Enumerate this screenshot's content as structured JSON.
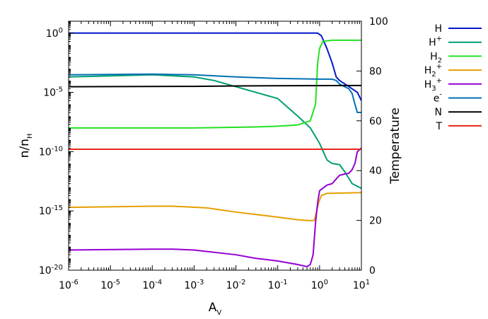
{
  "chart_data": {
    "type": "line",
    "x_axis": {
      "label_base": "A",
      "label_sub": "V",
      "scale": "log",
      "range": [
        1e-06,
        10
      ],
      "ticks": [
        {
          "value": 1e-06,
          "base": "10",
          "exp": "-6"
        },
        {
          "value": 1e-05,
          "base": "10",
          "exp": "-5"
        },
        {
          "value": 0.0001,
          "base": "10",
          "exp": "-4"
        },
        {
          "value": 0.001,
          "base": "10",
          "exp": "-3"
        },
        {
          "value": 0.01,
          "base": "10",
          "exp": "-2"
        },
        {
          "value": 0.1,
          "base": "10",
          "exp": "-1"
        },
        {
          "value": 1,
          "base": "10",
          "exp": "0"
        },
        {
          "value": 10,
          "base": "10",
          "exp": "1"
        }
      ]
    },
    "y_axis_left": {
      "label_base": "n/n",
      "label_sub": "H",
      "scale": "log",
      "range": [
        1e-20,
        10
      ],
      "ticks": [
        {
          "value": 1,
          "base": "10",
          "exp": "0"
        },
        {
          "value": 1e-05,
          "base": "10",
          "exp": "-5"
        },
        {
          "value": 1e-10,
          "base": "10",
          "exp": "-10"
        },
        {
          "value": 1e-15,
          "base": "10",
          "exp": "-15"
        },
        {
          "value": 1e-20,
          "base": "10",
          "exp": "-20"
        }
      ]
    },
    "y_axis_right": {
      "label": "Temperature",
      "scale": "linear",
      "range": [
        0,
        100
      ],
      "ticks": [
        0,
        20,
        40,
        60,
        80,
        100
      ]
    },
    "grid": false,
    "legend_position": "outside-right",
    "series": [
      {
        "name_base": "H",
        "name_sup": "",
        "name_sub": "",
        "color": "#0018c8",
        "axis": "left",
        "points": [
          [
            1e-06,
            1.0
          ],
          [
            0.1,
            1.0
          ],
          [
            0.9,
            1.0
          ],
          [
            1.1,
            0.6
          ],
          [
            1.5,
            0.05
          ],
          [
            2.0,
            0.003
          ],
          [
            2.5,
            0.0002
          ],
          [
            3.0,
            0.0001
          ],
          [
            3.5,
            7e-05
          ],
          [
            4.5,
            4e-05
          ],
          [
            6.0,
            2e-05
          ],
          [
            8.0,
            1e-05
          ],
          [
            10.0,
            2e-06
          ]
        ]
      },
      {
        "name_base": "H",
        "name_sup": "+",
        "name_sub": "",
        "color": "#009e73",
        "axis": "left",
        "points": [
          [
            1e-06,
            0.0002
          ],
          [
            0.0001,
            0.0003
          ],
          [
            0.001,
            0.0002
          ],
          [
            0.003,
            0.0001
          ],
          [
            0.01,
            3e-05
          ],
          [
            0.03,
            1e-05
          ],
          [
            0.1,
            3e-06
          ],
          [
            0.3,
            1e-07
          ],
          [
            0.6,
            1e-08
          ],
          [
            1.0,
            5e-10
          ],
          [
            1.5,
            2e-11
          ],
          [
            2.0,
            1e-11
          ],
          [
            3.0,
            8e-12
          ],
          [
            4.0,
            2e-12
          ],
          [
            6.0,
            2e-13
          ],
          [
            10.0,
            8e-14
          ]
        ]
      },
      {
        "name_base": "H",
        "name_sup": "",
        "name_sub": "2",
        "color": "#22e022",
        "axis": "left",
        "points": [
          [
            1e-06,
            1e-08
          ],
          [
            0.001,
            1e-08
          ],
          [
            0.03,
            1.2e-08
          ],
          [
            0.1,
            1.4e-08
          ],
          [
            0.3,
            1.8e-08
          ],
          [
            0.6,
            4e-08
          ],
          [
            0.8,
            1e-06
          ],
          [
            0.9,
            0.003
          ],
          [
            1.0,
            0.05
          ],
          [
            1.2,
            0.2
          ],
          [
            2.0,
            0.25
          ],
          [
            10.0,
            0.25
          ]
        ]
      },
      {
        "name_base": "H",
        "name_sup": "+",
        "name_sub": "2",
        "color": "#e69f00",
        "axis": "left",
        "points": [
          [
            1e-06,
            2e-15
          ],
          [
            0.0001,
            2.5e-15
          ],
          [
            0.0003,
            2.5e-15
          ],
          [
            0.002,
            1.8e-15
          ],
          [
            0.01,
            8e-16
          ],
          [
            0.03,
            5e-16
          ],
          [
            0.1,
            3e-16
          ],
          [
            0.3,
            1.8e-16
          ],
          [
            0.6,
            1.5e-16
          ],
          [
            0.75,
            1.6e-16
          ],
          [
            0.85,
            1e-15
          ],
          [
            0.95,
            5e-15
          ],
          [
            1.1,
            2e-14
          ],
          [
            1.5,
            3e-14
          ],
          [
            10.0,
            3.5e-14
          ]
        ]
      },
      {
        "name_base": "H",
        "name_sup": "+",
        "name_sub": "3",
        "color": "#9400d3",
        "axis": "left",
        "points": [
          [
            1e-06,
            5e-19
          ],
          [
            0.0001,
            6e-19
          ],
          [
            0.0003,
            6e-19
          ],
          [
            0.001,
            5e-19
          ],
          [
            0.01,
            2e-19
          ],
          [
            0.03,
            1e-19
          ],
          [
            0.1,
            6e-20
          ],
          [
            0.3,
            3e-20
          ],
          [
            0.5,
            2e-20
          ],
          [
            0.6,
            3e-20
          ],
          [
            0.7,
            2e-19
          ],
          [
            0.8,
            1e-16
          ],
          [
            0.9,
            5e-15
          ],
          [
            1.0,
            5e-14
          ],
          [
            1.5,
            1.5e-13
          ],
          [
            2.0,
            2e-13
          ],
          [
            2.5,
            5e-13
          ],
          [
            3.0,
            1e-12
          ],
          [
            4.0,
            1.3e-12
          ],
          [
            5.0,
            1.5e-12
          ],
          [
            6.0,
            3e-12
          ],
          [
            7.0,
            1e-11
          ],
          [
            8.0,
            1e-10
          ],
          [
            10.0,
            2e-10
          ]
        ]
      },
      {
        "name_base": "e",
        "name_sup": "-",
        "name_sub": "",
        "color": "#0072b2",
        "axis": "left",
        "points": [
          [
            1e-06,
            0.0003
          ],
          [
            0.0001,
            0.00035
          ],
          [
            0.001,
            0.0003
          ],
          [
            0.01,
            0.0002
          ],
          [
            0.1,
            0.00015
          ],
          [
            1.0,
            0.00013
          ],
          [
            2.0,
            0.00013
          ],
          [
            2.5,
            0.0001
          ],
          [
            3.0,
            5e-05
          ],
          [
            4.0,
            3e-05
          ],
          [
            5.0,
            2e-05
          ],
          [
            6.0,
            8e-06
          ],
          [
            7.0,
            1e-06
          ],
          [
            8.0,
            2e-07
          ],
          [
            10.0,
            2e-07
          ]
        ]
      },
      {
        "name_base": "N",
        "name_sup": "",
        "name_sub": "",
        "color": "#000000",
        "axis": "left",
        "points": [
          [
            1e-06,
            3e-05
          ],
          [
            0.001,
            3.2e-05
          ],
          [
            0.01,
            3.5e-05
          ],
          [
            10.0,
            3.8e-05
          ]
        ]
      },
      {
        "name_base": "T",
        "name_sup": "",
        "name_sub": "",
        "color": "#e8261a",
        "axis": "left",
        "points": [
          [
            1e-06,
            1.6e-10
          ],
          [
            10.0,
            1.6e-10
          ]
        ]
      }
    ]
  }
}
